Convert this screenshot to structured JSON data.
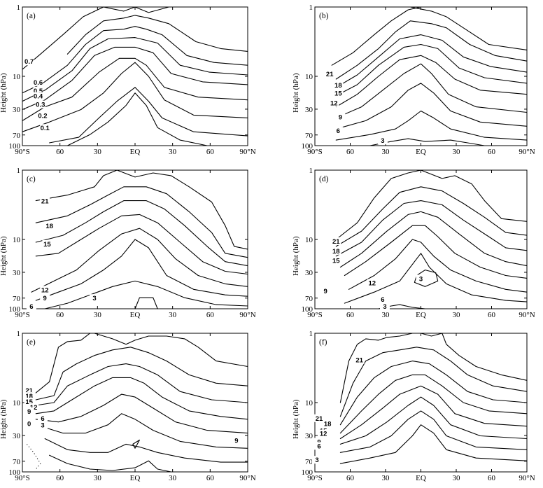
{
  "chart_data": [
    {
      "type": "contour",
      "panel_label": "(a)",
      "ylabel": "Height (hPa)",
      "x_ticks": [
        "90°S",
        "60",
        "30",
        "EQ",
        "30",
        "60",
        "90°N"
      ],
      "y_ticks": [
        "1",
        "10",
        "30",
        "70",
        "100"
      ],
      "contour_labels": [
        "0.7",
        "0.6",
        "0.5",
        "0.4",
        "0.3",
        "0.2",
        "0.1"
      ]
    },
    {
      "type": "contour",
      "panel_label": "(b)",
      "ylabel": "Height (hPa)",
      "x_ticks": [
        "90°S",
        "60",
        "30",
        "EQ",
        "30",
        "60",
        "90°N"
      ],
      "y_ticks": [
        "1",
        "10",
        "30",
        "70",
        "100"
      ],
      "contour_labels": [
        "21",
        "18",
        "15",
        "12",
        "9",
        "6",
        "3"
      ]
    },
    {
      "type": "contour",
      "panel_label": "(c)",
      "ylabel": "Height (hPa)",
      "x_ticks": [
        "90°S",
        "60",
        "30",
        "EQ",
        "30",
        "60",
        "90°N"
      ],
      "y_ticks": [
        "1",
        "10",
        "30",
        "70",
        "100"
      ],
      "contour_labels": [
        "21",
        "18",
        "15",
        "12",
        "9",
        "6",
        "3"
      ]
    },
    {
      "type": "contour",
      "panel_label": "(d)",
      "ylabel": "Height (hPa)",
      "x_ticks": [
        "90°S",
        "60",
        "30",
        "EQ",
        "30",
        "60",
        "90°N"
      ],
      "y_ticks": [
        "1",
        "10",
        "30",
        "70",
        "100"
      ],
      "contour_labels": [
        "21",
        "18",
        "15",
        "12",
        "9",
        "6",
        "3",
        "3"
      ]
    },
    {
      "type": "contour",
      "panel_label": "(e)",
      "ylabel": "Height (hPa)",
      "x_ticks": [
        "90°S",
        "60",
        "30",
        "EQ",
        "30",
        "60",
        "90°N"
      ],
      "y_ticks": [
        "1",
        "10",
        "30",
        "70",
        "100"
      ],
      "contour_labels": [
        "21",
        "18",
        "15",
        "12",
        "9",
        "6",
        "3",
        "0",
        "9"
      ]
    },
    {
      "type": "contour",
      "panel_label": "(f)",
      "ylabel": "Height (hPa)",
      "x_ticks": [
        "90°S",
        "60",
        "30",
        "EQ",
        "30",
        "60",
        "90°N"
      ],
      "y_ticks": [
        "1",
        "10",
        "30",
        "70",
        "100"
      ],
      "contour_labels": [
        "21",
        "21",
        "18",
        "15",
        "12",
        "9",
        "6",
        "3"
      ]
    }
  ]
}
